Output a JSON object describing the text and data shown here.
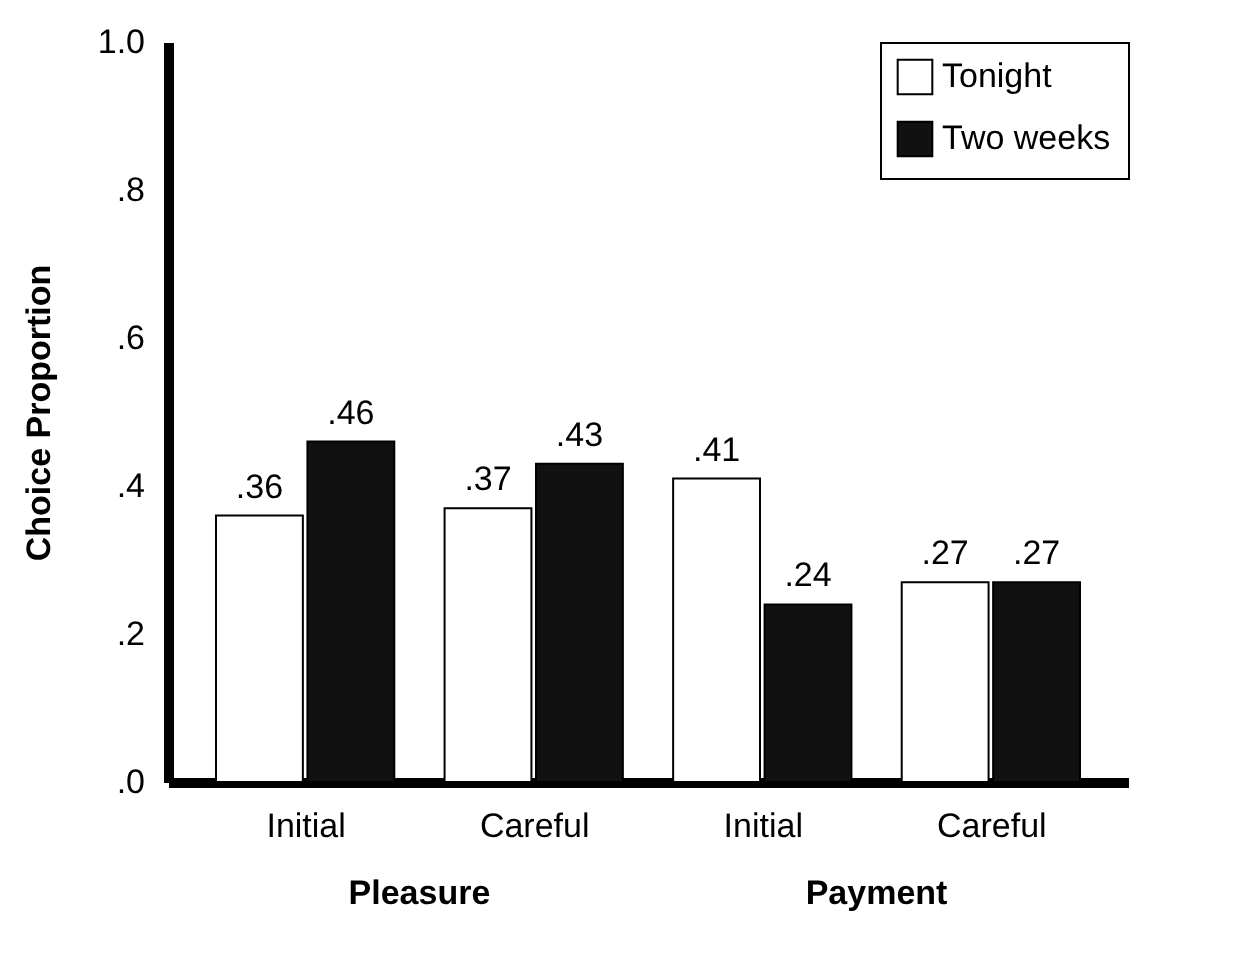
{
  "chart_data": {
    "type": "bar",
    "ylabel": "Choice Proportion",
    "categories": [
      "Initial",
      "Careful",
      "Initial",
      "Careful"
    ],
    "series": [
      {
        "name": "Tonight",
        "color": "#ffffff",
        "values": [
          0.36,
          0.37,
          0.41,
          0.27
        ],
        "value_labels": [
          ".36",
          ".37",
          ".41",
          ".27"
        ]
      },
      {
        "name": "Two weeks",
        "color": "#111111",
        "values": [
          0.46,
          0.43,
          0.24,
          0.27
        ],
        "value_labels": [
          ".46",
          ".43",
          ".24",
          ".27"
        ]
      }
    ],
    "ylim": [
      0,
      1
    ],
    "yticks": [
      {
        "value": 0,
        "label": ".0"
      },
      {
        "value": 0.2,
        "label": ".2"
      },
      {
        "value": 0.4,
        "label": ".4"
      },
      {
        "value": 0.6,
        "label": ".6"
      },
      {
        "value": 0.8,
        "label": ".8"
      },
      {
        "value": 1,
        "label": "1.0"
      }
    ],
    "annotations": [
      "Pleasure",
      "Payment"
    ],
    "grid": false,
    "legend": "top right"
  }
}
